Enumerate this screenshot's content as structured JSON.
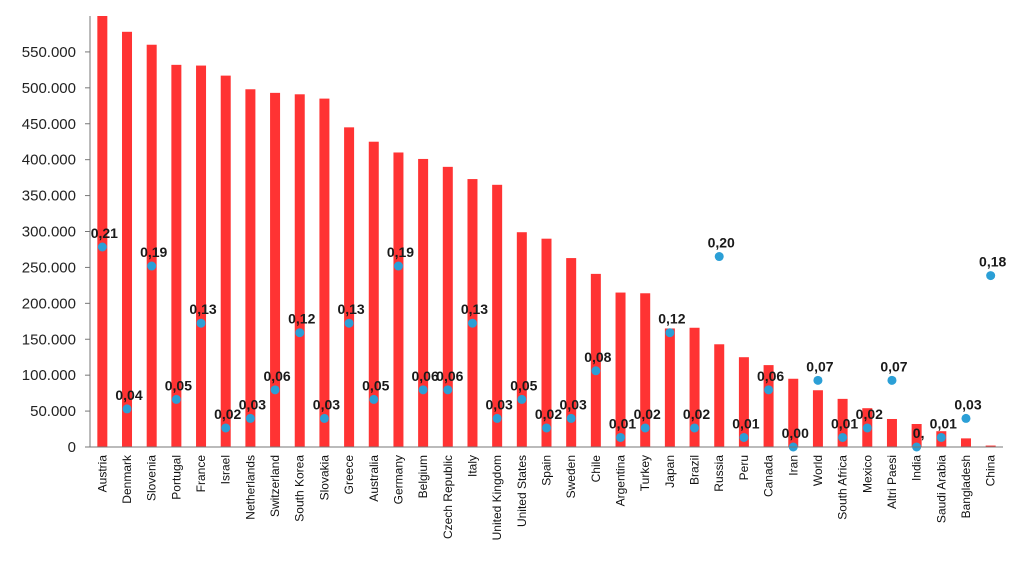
{
  "chart_data": {
    "type": "bar",
    "title": "",
    "xlabel": "",
    "ylabel": "",
    "ylim": [
      0,
      600000
    ],
    "ytick_labels": [
      "0",
      "50.000",
      "100.000",
      "150.000",
      "200.000",
      "250.000",
      "300.000",
      "350.000",
      "400.000",
      "450.000",
      "500.000",
      "550.000"
    ],
    "categories": [
      "Austria",
      "Denmark",
      "Slovenia",
      "Portugal",
      "France",
      "Israel",
      "Netherlands",
      "Switzerland",
      "South Korea",
      "Slovakia",
      "Greece",
      "Australia",
      "Germany",
      "Belgium",
      "Czech Republic",
      "Italy",
      "United Kingdom",
      "United States",
      "Spain",
      "Sweden",
      "Chile",
      "Argentina",
      "Turkey",
      "Japan",
      "Brazil",
      "Russia",
      "Peru",
      "Canada",
      "Iran",
      "World",
      "South Africa",
      "Mexico",
      "Altri Paesi",
      "India",
      "Saudi Arabia",
      "Bangladesh",
      "China"
    ],
    "series": [
      {
        "type": "bar",
        "color": "#ff3333",
        "values": [
          600000,
          578000,
          560000,
          532000,
          531000,
          517000,
          498000,
          493000,
          491000,
          485000,
          445000,
          425000,
          410000,
          401000,
          390000,
          373000,
          365000,
          299000,
          290000,
          263000,
          241000,
          215000,
          214000,
          165000,
          166000,
          143000,
          125000,
          114000,
          95000,
          79000,
          67000,
          54000,
          39000,
          32000,
          22000,
          12000,
          2000
        ]
      },
      {
        "type": "scatter",
        "color": "#2b9fd6",
        "values": [
          0.21,
          0.04,
          0.19,
          0.05,
          0.13,
          0.02,
          0.03,
          0.06,
          0.12,
          0.03,
          0.13,
          0.05,
          0.19,
          0.06,
          0.06,
          0.13,
          0.03,
          0.05,
          0.02,
          0.03,
          0.08,
          0.01,
          0.02,
          0.12,
          0.02,
          0.2,
          0.01,
          0.06,
          0.0,
          0.07,
          0.01,
          0.02,
          0.07,
          0.0,
          0.01,
          0.03,
          0.18
        ],
        "labels": [
          "0,21",
          "0,04",
          "0,19",
          "0,05",
          "0,13",
          "0,02",
          "0,03",
          "0,06",
          "0,12",
          "0,03",
          "0,13",
          "0,05",
          "0,19",
          "0,06",
          "0,06",
          "0,13",
          "0,03",
          "0,05",
          "0,02",
          "0,03",
          "0,08",
          "0,01",
          "0,02",
          "0,12",
          "0,02",
          "0,20",
          "0,01",
          "0,06",
          "0,00",
          "0,07",
          "0,01",
          "0,02",
          "0,07",
          "0,",
          "0,01",
          "0,03",
          "0,18"
        ]
      }
    ],
    "grid": false,
    "legend": "none"
  }
}
